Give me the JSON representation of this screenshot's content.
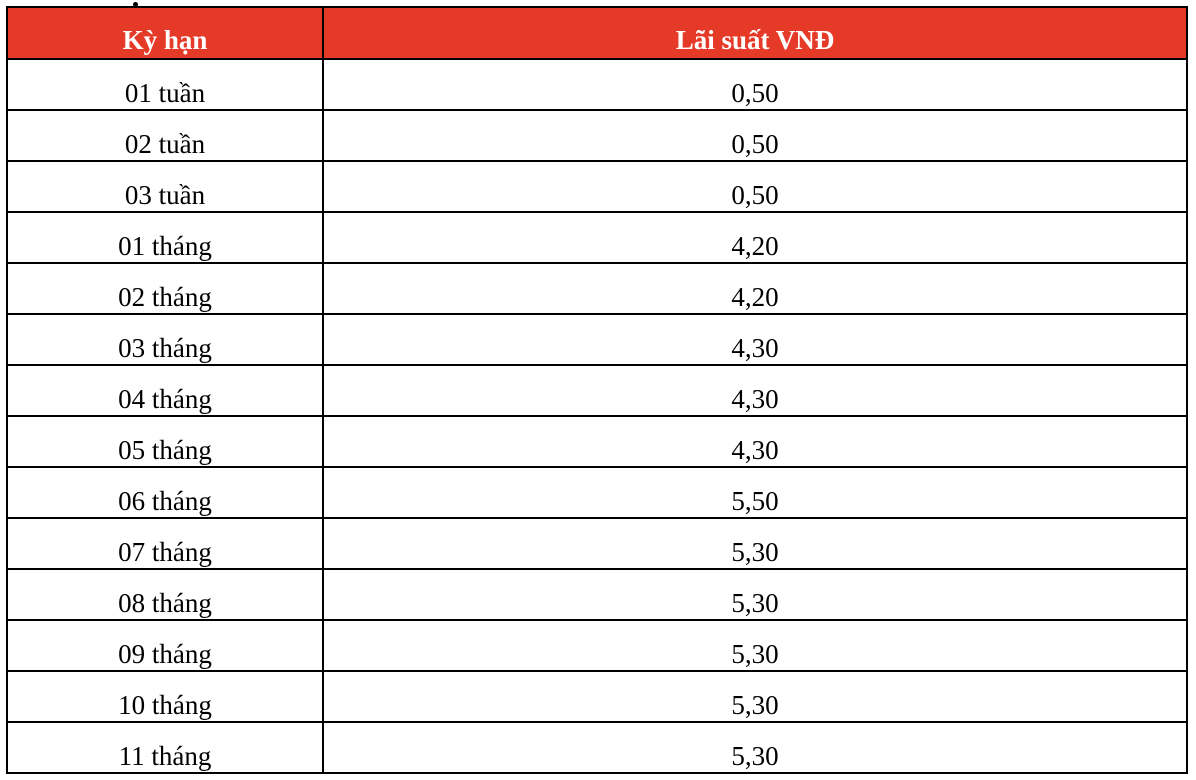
{
  "table": {
    "headers": [
      "Kỳ hạn",
      "Lãi suất VNĐ"
    ],
    "header_color": "#E63A29",
    "rows": [
      [
        "01 tuần",
        "0,50"
      ],
      [
        "02 tuần",
        "0,50"
      ],
      [
        "03 tuần",
        "0,50"
      ],
      [
        "01 tháng",
        "4,20"
      ],
      [
        "02 tháng",
        "4,20"
      ],
      [
        "03 tháng",
        "4,30"
      ],
      [
        "04 tháng",
        "4,30"
      ],
      [
        "05 tháng",
        "4,30"
      ],
      [
        "06 tháng",
        "5,50"
      ],
      [
        "07 tháng",
        "5,30"
      ],
      [
        "08 tháng",
        "5,30"
      ],
      [
        "09 tháng",
        "5,30"
      ],
      [
        "10 tháng",
        "5,30"
      ],
      [
        "11 tháng",
        "5,30"
      ]
    ]
  }
}
